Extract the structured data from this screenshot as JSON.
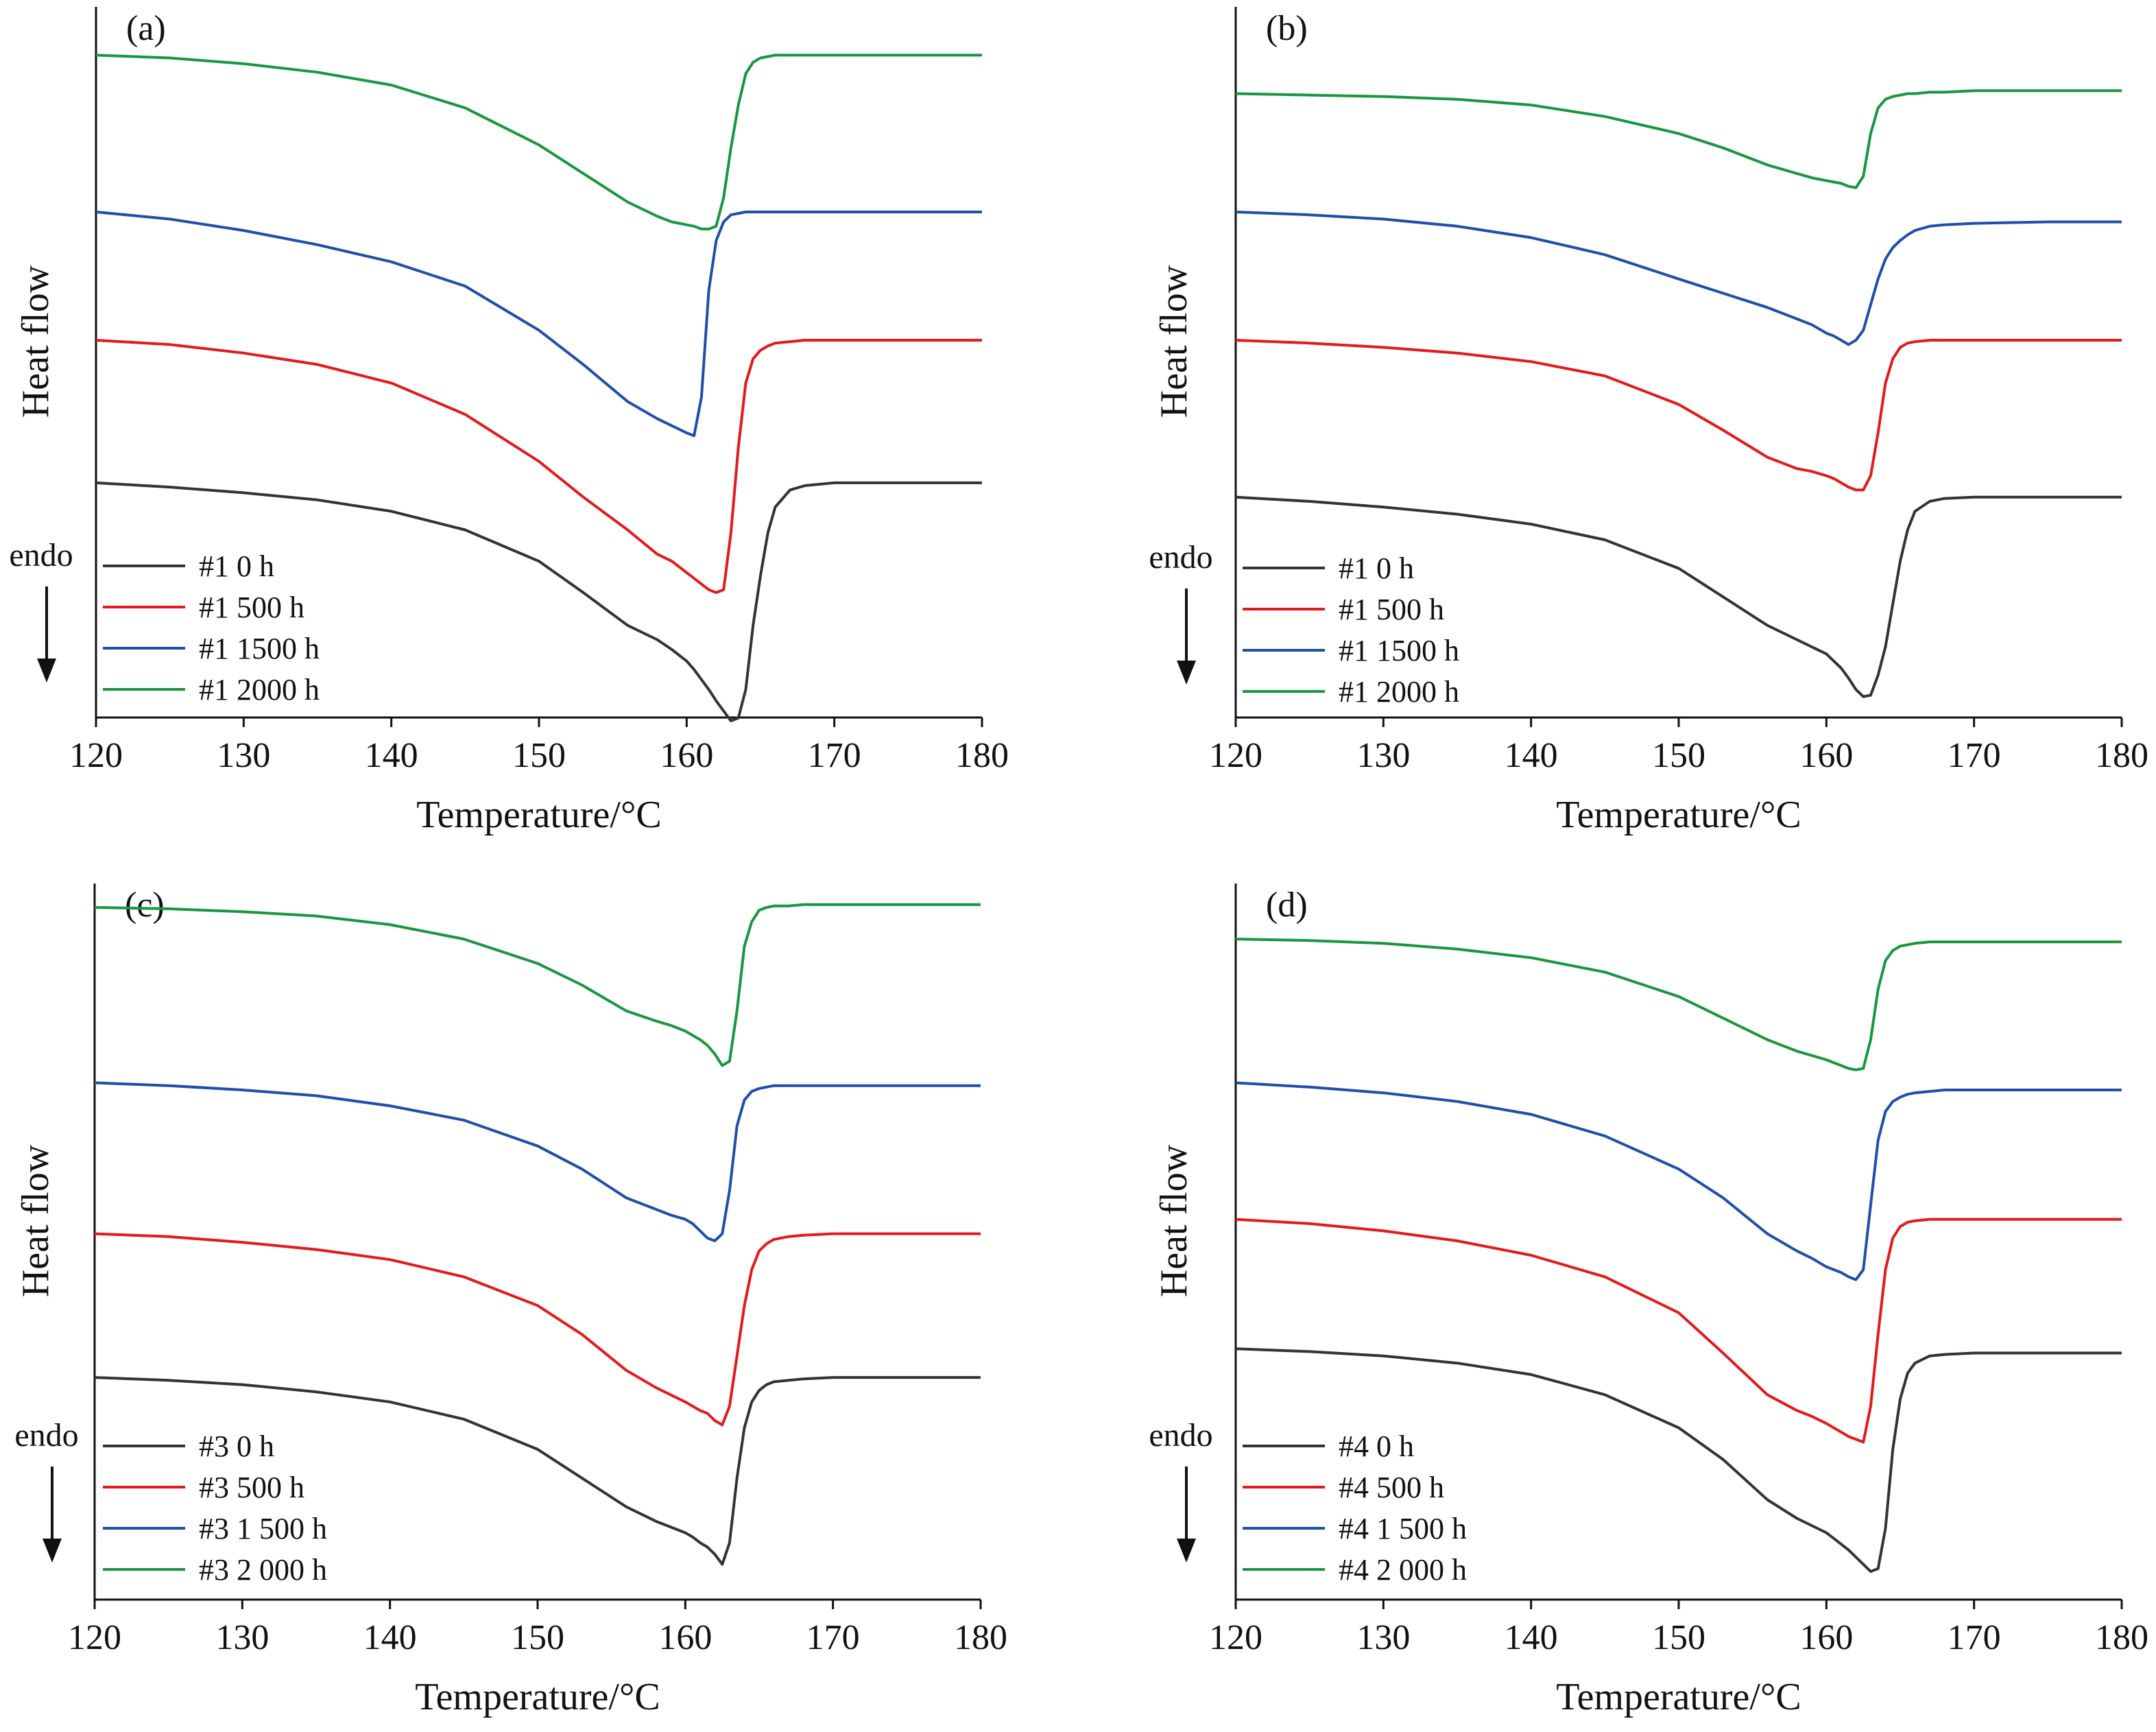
{
  "figure": {
    "x_tick_labels": [
      "120",
      "130",
      "140",
      "150",
      "160",
      "170",
      "180"
    ],
    "endo_label": "endo"
  },
  "chart_data": [
    {
      "type": "line",
      "panel_label": "(a)",
      "xlabel": "Temperature/°C",
      "ylabel": "Heat flow",
      "xlim": [
        120,
        180
      ],
      "ylim": [
        0,
        4.6
      ],
      "grid": false,
      "legend_position": "bottom-left",
      "x": [
        120,
        125,
        130,
        135,
        140,
        145,
        150,
        153,
        156,
        158,
        159,
        160,
        160.5,
        161,
        161.5,
        162,
        162.5,
        163,
        163.5,
        164,
        164.5,
        165,
        165.5,
        166,
        167,
        168,
        170,
        175,
        180
      ],
      "series": [
        {
          "name": "#1 0 h",
          "color": "#333333",
          "values": [
            1.55,
            1.52,
            1.48,
            1.43,
            1.35,
            1.22,
            1.0,
            0.78,
            0.55,
            0.45,
            0.38,
            0.3,
            0.24,
            0.17,
            0.1,
            0.02,
            -0.05,
            -0.12,
            -0.1,
            0.1,
            0.55,
            0.9,
            1.2,
            1.38,
            1.5,
            1.53,
            1.55,
            1.55,
            1.55
          ]
        },
        {
          "name": "#1 500 h",
          "color": "#e31a1c",
          "values": [
            2.55,
            2.52,
            2.46,
            2.38,
            2.25,
            2.03,
            1.7,
            1.45,
            1.22,
            1.05,
            1.0,
            0.92,
            0.88,
            0.84,
            0.8,
            0.78,
            0.8,
            1.2,
            1.8,
            2.25,
            2.42,
            2.48,
            2.51,
            2.53,
            2.54,
            2.55,
            2.55,
            2.55,
            2.55
          ]
        },
        {
          "name": "#1 1500 h",
          "color": "#1f4fa8",
          "values": [
            3.45,
            3.4,
            3.32,
            3.22,
            3.1,
            2.93,
            2.62,
            2.38,
            2.12,
            2.0,
            1.95,
            1.9,
            1.88,
            2.15,
            2.9,
            3.25,
            3.38,
            3.43,
            3.44,
            3.45,
            3.45,
            3.45,
            3.45,
            3.45,
            3.45,
            3.45,
            3.45,
            3.45,
            3.45
          ]
        },
        {
          "name": "#1 2000 h",
          "color": "#1a9641",
          "values": [
            4.55,
            4.53,
            4.49,
            4.43,
            4.34,
            4.18,
            3.92,
            3.72,
            3.52,
            3.42,
            3.38,
            3.36,
            3.35,
            3.33,
            3.33,
            3.35,
            3.55,
            3.9,
            4.2,
            4.42,
            4.5,
            4.53,
            4.54,
            4.55,
            4.55,
            4.55,
            4.55,
            4.55,
            4.55
          ]
        }
      ]
    },
    {
      "type": "line",
      "panel_label": "(b)",
      "xlabel": "Temperature/°C",
      "ylabel": "Heat flow",
      "xlim": [
        120,
        180
      ],
      "ylim": [
        0,
        4.6
      ],
      "grid": false,
      "legend_position": "bottom-left",
      "x": [
        120,
        125,
        130,
        135,
        140,
        145,
        150,
        153,
        156,
        158,
        159,
        160,
        160.5,
        161,
        161.5,
        162,
        162.5,
        163,
        163.5,
        164,
        164.5,
        165,
        165.5,
        166,
        167,
        168,
        170,
        175,
        180
      ],
      "series": [
        {
          "name": "#1 0 h",
          "color": "#333333",
          "values": [
            1.45,
            1.42,
            1.38,
            1.33,
            1.26,
            1.15,
            0.95,
            0.75,
            0.55,
            0.45,
            0.4,
            0.35,
            0.3,
            0.25,
            0.18,
            0.1,
            0.05,
            0.06,
            0.2,
            0.4,
            0.7,
            1.0,
            1.22,
            1.35,
            1.42,
            1.44,
            1.45,
            1.45,
            1.45
          ]
        },
        {
          "name": "#1 500 h",
          "color": "#e31a1c",
          "values": [
            2.55,
            2.53,
            2.5,
            2.46,
            2.4,
            2.3,
            2.1,
            1.92,
            1.73,
            1.65,
            1.63,
            1.6,
            1.58,
            1.55,
            1.52,
            1.5,
            1.5,
            1.6,
            1.9,
            2.25,
            2.42,
            2.5,
            2.53,
            2.54,
            2.55,
            2.55,
            2.55,
            2.55,
            2.55
          ]
        },
        {
          "name": "#1 1500 h",
          "color": "#1f4fa8",
          "values": [
            3.45,
            3.43,
            3.4,
            3.35,
            3.27,
            3.15,
            2.98,
            2.88,
            2.78,
            2.7,
            2.66,
            2.6,
            2.58,
            2.55,
            2.52,
            2.55,
            2.62,
            2.8,
            2.98,
            3.12,
            3.2,
            3.25,
            3.29,
            3.32,
            3.35,
            3.36,
            3.37,
            3.38,
            3.38
          ]
        },
        {
          "name": "#1 2000 h",
          "color": "#1a9641",
          "values": [
            4.28,
            4.27,
            4.26,
            4.24,
            4.2,
            4.12,
            4.0,
            3.9,
            3.78,
            3.72,
            3.69,
            3.67,
            3.66,
            3.65,
            3.63,
            3.62,
            3.7,
            4.0,
            4.18,
            4.24,
            4.26,
            4.27,
            4.28,
            4.28,
            4.29,
            4.29,
            4.3,
            4.3,
            4.3
          ]
        }
      ]
    },
    {
      "type": "line",
      "panel_label": "(c)",
      "xlabel": "Temperature/°C",
      "ylabel": "Heat flow",
      "xlim": [
        120,
        180
      ],
      "ylim": [
        0,
        4.6
      ],
      "grid": false,
      "legend_position": "bottom-left",
      "x": [
        120,
        125,
        130,
        135,
        140,
        145,
        150,
        153,
        156,
        158,
        159,
        160,
        160.5,
        161,
        161.5,
        162,
        162.5,
        163,
        163.5,
        164,
        164.5,
        165,
        165.5,
        166,
        167,
        168,
        170,
        175,
        180
      ],
      "series": [
        {
          "name": "#3 0 h",
          "color": "#333333",
          "values": [
            1.45,
            1.43,
            1.4,
            1.35,
            1.28,
            1.16,
            0.95,
            0.75,
            0.55,
            0.45,
            0.41,
            0.37,
            0.34,
            0.3,
            0.27,
            0.22,
            0.15,
            0.3,
            0.75,
            1.1,
            1.28,
            1.36,
            1.4,
            1.42,
            1.43,
            1.44,
            1.45,
            1.45,
            1.45
          ]
        },
        {
          "name": "#3 500 h",
          "color": "#e31a1c",
          "values": [
            2.45,
            2.43,
            2.39,
            2.34,
            2.27,
            2.15,
            1.95,
            1.75,
            1.5,
            1.38,
            1.33,
            1.28,
            1.25,
            1.22,
            1.2,
            1.15,
            1.12,
            1.25,
            1.6,
            1.95,
            2.2,
            2.33,
            2.38,
            2.41,
            2.43,
            2.44,
            2.45,
            2.45,
            2.45
          ]
        },
        {
          "name": "#3 1 500 h",
          "color": "#1f4fa8",
          "values": [
            3.5,
            3.48,
            3.45,
            3.41,
            3.34,
            3.24,
            3.06,
            2.9,
            2.7,
            2.62,
            2.58,
            2.55,
            2.52,
            2.47,
            2.42,
            2.4,
            2.45,
            2.75,
            3.2,
            3.38,
            3.44,
            3.46,
            3.47,
            3.48,
            3.48,
            3.48,
            3.48,
            3.48,
            3.48
          ]
        },
        {
          "name": "#3 2 000 h",
          "color": "#1a9641",
          "values": [
            4.72,
            4.71,
            4.69,
            4.66,
            4.6,
            4.5,
            4.33,
            4.18,
            4.0,
            3.93,
            3.9,
            3.86,
            3.83,
            3.8,
            3.76,
            3.7,
            3.62,
            3.65,
            4.0,
            4.45,
            4.62,
            4.7,
            4.72,
            4.73,
            4.73,
            4.74,
            4.74,
            4.74,
            4.74
          ]
        }
      ]
    },
    {
      "type": "line",
      "panel_label": "(d)",
      "xlabel": "Temperature/°C",
      "ylabel": "Heat flow",
      "xlim": [
        120,
        180
      ],
      "ylim": [
        0,
        4.6
      ],
      "grid": false,
      "legend_position": "bottom-left",
      "x": [
        120,
        125,
        130,
        135,
        140,
        145,
        150,
        153,
        156,
        158,
        159,
        160,
        160.5,
        161,
        161.5,
        162,
        162.5,
        163,
        163.5,
        164,
        164.5,
        165,
        165.5,
        166,
        167,
        168,
        170,
        175,
        180
      ],
      "series": [
        {
          "name": "#4 0 h",
          "color": "#333333",
          "values": [
            1.65,
            1.63,
            1.6,
            1.55,
            1.47,
            1.33,
            1.1,
            0.88,
            0.6,
            0.47,
            0.42,
            0.37,
            0.33,
            0.29,
            0.25,
            0.2,
            0.15,
            0.1,
            0.12,
            0.4,
            0.95,
            1.3,
            1.48,
            1.55,
            1.6,
            1.61,
            1.62,
            1.62,
            1.62
          ]
        },
        {
          "name": "#4 500 h",
          "color": "#e31a1c",
          "values": [
            2.55,
            2.52,
            2.47,
            2.4,
            2.3,
            2.15,
            1.9,
            1.62,
            1.33,
            1.22,
            1.18,
            1.13,
            1.1,
            1.07,
            1.04,
            1.02,
            1.0,
            1.25,
            1.75,
            2.2,
            2.42,
            2.5,
            2.53,
            2.54,
            2.55,
            2.55,
            2.55,
            2.55,
            2.55
          ]
        },
        {
          "name": "#4 1 500 h",
          "color": "#1f4fa8",
          "values": [
            3.5,
            3.47,
            3.43,
            3.37,
            3.28,
            3.13,
            2.9,
            2.7,
            2.45,
            2.33,
            2.28,
            2.22,
            2.2,
            2.18,
            2.15,
            2.13,
            2.2,
            2.65,
            3.1,
            3.3,
            3.37,
            3.4,
            3.42,
            3.43,
            3.44,
            3.45,
            3.45,
            3.45,
            3.45
          ]
        },
        {
          "name": "#4 2 000 h",
          "color": "#1a9641",
          "values": [
            4.5,
            4.49,
            4.47,
            4.43,
            4.37,
            4.27,
            4.1,
            3.95,
            3.8,
            3.72,
            3.69,
            3.66,
            3.64,
            3.62,
            3.6,
            3.59,
            3.6,
            3.8,
            4.15,
            4.35,
            4.42,
            4.45,
            4.46,
            4.47,
            4.48,
            4.48,
            4.48,
            4.48,
            4.48
          ]
        }
      ]
    }
  ]
}
